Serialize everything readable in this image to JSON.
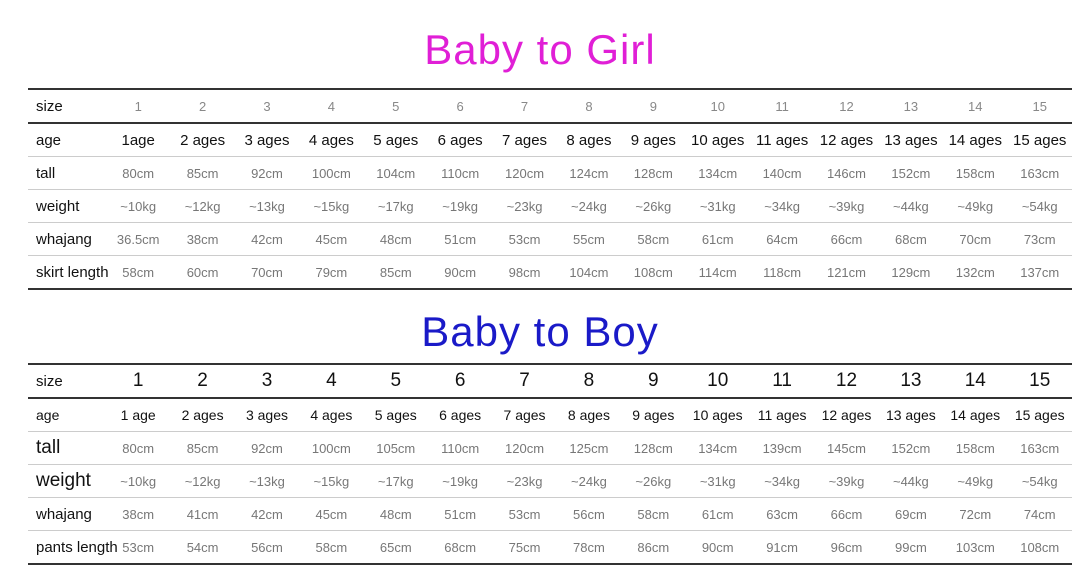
{
  "girl": {
    "title": "Baby to Girl",
    "title_color": "#e01fd6",
    "rows": [
      {
        "label": "size",
        "values": [
          "1",
          "2",
          "3",
          "4",
          "5",
          "6",
          "7",
          "8",
          "9",
          "10",
          "11",
          "12",
          "13",
          "14",
          "15"
        ]
      },
      {
        "label": "age",
        "values": [
          "1age",
          "2 ages",
          "3 ages",
          "4 ages",
          "5 ages",
          "6 ages",
          "7 ages",
          "8 ages",
          "9 ages",
          "10 ages",
          "11 ages",
          "12 ages",
          "13 ages",
          "14 ages",
          "15 ages"
        ]
      },
      {
        "label": "tall",
        "values": [
          "80cm",
          "85cm",
          "92cm",
          "100cm",
          "104cm",
          "110cm",
          "120cm",
          "124cm",
          "128cm",
          "134cm",
          "140cm",
          "146cm",
          "152cm",
          "158cm",
          "163cm"
        ]
      },
      {
        "label": "weight",
        "values": [
          "~10kg",
          "~12kg",
          "~13kg",
          "~15kg",
          "~17kg",
          "~19kg",
          "~23kg",
          "~24kg",
          "~26kg",
          "~31kg",
          "~34kg",
          "~39kg",
          "~44kg",
          "~49kg",
          "~54kg"
        ]
      },
      {
        "label": "whajang",
        "values": [
          "36.5cm",
          "38cm",
          "42cm",
          "45cm",
          "48cm",
          "51cm",
          "53cm",
          "55cm",
          "58cm",
          "61cm",
          "64cm",
          "66cm",
          "68cm",
          "70cm",
          "73cm"
        ]
      },
      {
        "label": "skirt length",
        "values": [
          "58cm",
          "60cm",
          "70cm",
          "79cm",
          "85cm",
          "90cm",
          "98cm",
          "104cm",
          "108cm",
          "114cm",
          "118cm",
          "121cm",
          "129cm",
          "132cm",
          "137cm"
        ]
      }
    ]
  },
  "boy": {
    "title": "Baby to Boy",
    "title_color": "#1a1ac8",
    "rows": [
      {
        "label": "size",
        "values": [
          "1",
          "2",
          "3",
          "4",
          "5",
          "6",
          "7",
          "8",
          "9",
          "10",
          "11",
          "12",
          "13",
          "14",
          "15"
        ]
      },
      {
        "label": "age",
        "values": [
          "1 age",
          "2 ages",
          "3 ages",
          "4 ages",
          "5 ages",
          "6 ages",
          "7 ages",
          "8 ages",
          "9 ages",
          "10 ages",
          "11 ages",
          "12 ages",
          "13 ages",
          "14 ages",
          "15 ages"
        ]
      },
      {
        "label": "tall",
        "values": [
          "80cm",
          "85cm",
          "92cm",
          "100cm",
          "105cm",
          "110cm",
          "120cm",
          "125cm",
          "128cm",
          "134cm",
          "139cm",
          "145cm",
          "152cm",
          "158cm",
          "163cm"
        ]
      },
      {
        "label": "weight",
        "values": [
          "~10kg",
          "~12kg",
          "~13kg",
          "~15kg",
          "~17kg",
          "~19kg",
          "~23kg",
          "~24kg",
          "~26kg",
          "~31kg",
          "~34kg",
          "~39kg",
          "~44kg",
          "~49kg",
          "~54kg"
        ]
      },
      {
        "label": "whajang",
        "values": [
          "38cm",
          "41cm",
          "42cm",
          "45cm",
          "48cm",
          "51cm",
          "53cm",
          "56cm",
          "58cm",
          "61cm",
          "63cm",
          "66cm",
          "69cm",
          "72cm",
          "74cm"
        ]
      },
      {
        "label": "pants length",
        "values": [
          "53cm",
          "54cm",
          "56cm",
          "58cm",
          "65cm",
          "68cm",
          "75cm",
          "78cm",
          "86cm",
          "90cm",
          "91cm",
          "96cm",
          "99cm",
          "103cm",
          "108cm"
        ]
      }
    ]
  }
}
